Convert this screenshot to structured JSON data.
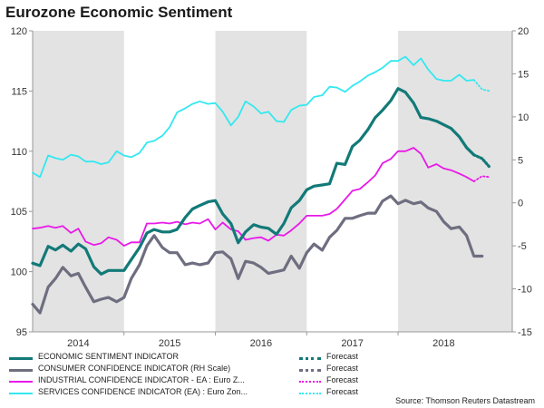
{
  "title": "Eurozone Economic Sentiment",
  "source": "Source: Thomson Reuters Datastream",
  "chart_data": {
    "type": "line",
    "x_range": [
      2013.5,
      2018.75
    ],
    "y_left": {
      "range": [
        95,
        120
      ],
      "ticks": [
        95,
        100,
        105,
        110,
        115,
        120
      ]
    },
    "y_right": {
      "range": [
        -15,
        20
      ],
      "ticks": [
        -15,
        -10,
        -5,
        0,
        5,
        10,
        15,
        20
      ]
    },
    "x_tick_labels": [
      {
        "label": "2014",
        "x": 2014.0
      },
      {
        "label": "2015",
        "x": 2015.0
      },
      {
        "label": "2016",
        "x": 2016.0
      },
      {
        "label": "2017",
        "x": 2017.0
      },
      {
        "label": "2018",
        "x": 2018.0
      }
    ],
    "shaded_years": [
      [
        2013.5,
        2014.5
      ],
      [
        2015.5,
        2016.5
      ],
      [
        2017.5,
        2018.75
      ]
    ],
    "forecast_label": "Forecast",
    "series": [
      {
        "name": "ECONOMIC SENTIMENT INDICATOR",
        "axis": "left",
        "color": "#127a78",
        "width": 3.2,
        "x": [
          2013.5,
          2013.58,
          2013.67,
          2013.75,
          2013.83,
          2013.92,
          2014.0,
          2014.08,
          2014.17,
          2014.25,
          2014.33,
          2014.42,
          2014.5,
          2014.58,
          2014.67,
          2014.75,
          2014.83,
          2014.92,
          2015.0,
          2015.08,
          2015.17,
          2015.25,
          2015.33,
          2015.42,
          2015.5,
          2015.58,
          2015.67,
          2015.75,
          2015.83,
          2015.92,
          2016.0,
          2016.08,
          2016.17,
          2016.25,
          2016.33,
          2016.42,
          2016.5,
          2016.58,
          2016.67,
          2016.75,
          2016.83,
          2016.92,
          2017.0,
          2017.08,
          2017.17,
          2017.25,
          2017.33,
          2017.42,
          2017.5,
          2017.58,
          2017.67,
          2017.75,
          2017.83,
          2017.92,
          2018.0,
          2018.08,
          2018.17,
          2018.25,
          2018.33
        ],
        "y": [
          100.7,
          100.5,
          102.1,
          101.8,
          102.2,
          101.7,
          102.3,
          101.9,
          100.4,
          99.8,
          100.1,
          100.1,
          100.1,
          101.0,
          102.0,
          103.2,
          103.5,
          103.3,
          103.3,
          103.5,
          104.5,
          105.2,
          105.5,
          105.8,
          105.9,
          104.8,
          104.0,
          102.4,
          103.3,
          103.9,
          103.7,
          103.6,
          103.1,
          104.0,
          105.3,
          105.9,
          106.8,
          107.1,
          107.2,
          107.3,
          109.0,
          108.9,
          110.4,
          110.9,
          111.8,
          112.8,
          113.4,
          114.2,
          115.2,
          114.9,
          114.0,
          112.8,
          112.7,
          112.5,
          112.2,
          111.9,
          111.2,
          110.3,
          109.7
        ],
        "forecast_x": [
          2018.33,
          2018.42,
          2018.5
        ],
        "forecast_y": [
          109.7,
          109.4,
          108.7
        ]
      },
      {
        "name": "CONSUMER CONFIDENCE INDICATOR (RH Scale)",
        "axis": "right",
        "color": "#6e6e80",
        "width": 3.2,
        "x": [
          2013.5,
          2013.58,
          2013.67,
          2013.75,
          2013.83,
          2013.92,
          2014.0,
          2014.08,
          2014.17,
          2014.25,
          2014.33,
          2014.42,
          2014.5,
          2014.58,
          2014.67,
          2014.75,
          2014.83,
          2014.92,
          2015.0,
          2015.08,
          2015.17,
          2015.25,
          2015.33,
          2015.42,
          2015.5,
          2015.58,
          2015.67,
          2015.75,
          2015.83,
          2015.92,
          2016.0,
          2016.08,
          2016.17,
          2016.25,
          2016.33,
          2016.42,
          2016.5,
          2016.58,
          2016.67,
          2016.75,
          2016.83,
          2016.92,
          2017.0,
          2017.08,
          2017.17,
          2017.25,
          2017.33,
          2017.42,
          2017.5,
          2017.58,
          2017.67,
          2017.75,
          2017.83,
          2017.92,
          2018.0,
          2018.08,
          2018.17,
          2018.25,
          2018.33,
          2018.42
        ],
        "y": [
          -11.8,
          -12.8,
          -9.8,
          -8.8,
          -7.5,
          -8.5,
          -8.2,
          -9.8,
          -11.5,
          -11.2,
          -11.0,
          -11.5,
          -11.0,
          -8.8,
          -7.2,
          -5.0,
          -3.8,
          -5.2,
          -5.8,
          -5.8,
          -7.2,
          -7.0,
          -7.2,
          -7.0,
          -5.8,
          -5.7,
          -6.5,
          -8.8,
          -6.8,
          -7.0,
          -7.5,
          -8.2,
          -8.0,
          -7.8,
          -6.2,
          -7.6,
          -5.8,
          -4.8,
          -5.5,
          -4.0,
          -3.2,
          -1.8,
          -1.8,
          -1.5,
          -1.2,
          -1.2,
          0.2,
          0.8,
          -0.1,
          0.3,
          -0.1,
          0.1,
          -0.6,
          -1.0,
          -2.2,
          -3.0,
          -2.8,
          -3.8,
          -6.2,
          -6.2
        ],
        "forecast_x": [],
        "forecast_y": []
      },
      {
        "name": "INDUSTRIAL CONFIDENCE INDICATOR - EA : Euro Z...",
        "axis": "right",
        "color": "#e81ae8",
        "width": 1.8,
        "x": [
          2013.5,
          2013.58,
          2013.67,
          2013.75,
          2013.83,
          2013.92,
          2014.0,
          2014.08,
          2014.17,
          2014.25,
          2014.33,
          2014.42,
          2014.5,
          2014.58,
          2014.67,
          2014.75,
          2014.83,
          2014.92,
          2015.0,
          2015.08,
          2015.17,
          2015.25,
          2015.33,
          2015.42,
          2015.5,
          2015.58,
          2015.67,
          2015.75,
          2015.83,
          2015.92,
          2016.0,
          2016.08,
          2016.17,
          2016.25,
          2016.33,
          2016.42,
          2016.5,
          2016.58,
          2016.67,
          2016.75,
          2016.83,
          2016.92,
          2017.0,
          2017.08,
          2017.17,
          2017.25,
          2017.33,
          2017.42,
          2017.5,
          2017.58,
          2017.67,
          2017.75,
          2017.83,
          2017.92,
          2018.0,
          2018.08,
          2018.17,
          2018.25,
          2018.33
        ],
        "y": [
          -3.0,
          -2.9,
          -2.7,
          -2.9,
          -2.7,
          -3.5,
          -3.0,
          -4.5,
          -4.9,
          -4.7,
          -4.0,
          -4.3,
          -5.0,
          -4.6,
          -4.6,
          -2.4,
          -2.4,
          -2.3,
          -2.4,
          -2.2,
          -2.5,
          -2.3,
          -2.4,
          -1.9,
          -3.1,
          -2.3,
          -3.1,
          -3.3,
          -4.3,
          -4.1,
          -4.0,
          -4.4,
          -3.7,
          -3.8,
          -3.2,
          -2.4,
          -1.5,
          -1.5,
          -1.5,
          -1.3,
          -0.7,
          0.4,
          1.4,
          1.6,
          2.4,
          3.2,
          4.6,
          5.1,
          6.0,
          6.0,
          6.4,
          5.7,
          4.1,
          4.5,
          4.0,
          3.8,
          3.4,
          3.0,
          2.5
        ],
        "forecast_x": [
          2018.33,
          2018.42,
          2018.5
        ],
        "forecast_y": [
          2.5,
          3.1,
          3.0
        ]
      },
      {
        "name": "SERVICES CONFIDENCE INDICATOR (EA) : Euro Zon...",
        "axis": "right",
        "color": "#33e8f0",
        "width": 1.8,
        "x": [
          2013.5,
          2013.58,
          2013.67,
          2013.75,
          2013.83,
          2013.92,
          2014.0,
          2014.08,
          2014.17,
          2014.25,
          2014.33,
          2014.42,
          2014.5,
          2014.58,
          2014.67,
          2014.75,
          2014.83,
          2014.92,
          2015.0,
          2015.08,
          2015.17,
          2015.25,
          2015.33,
          2015.42,
          2015.5,
          2015.58,
          2015.67,
          2015.75,
          2015.83,
          2015.92,
          2016.0,
          2016.08,
          2016.17,
          2016.25,
          2016.33,
          2016.42,
          2016.5,
          2016.58,
          2016.67,
          2016.75,
          2016.83,
          2016.92,
          2017.0,
          2017.08,
          2017.17,
          2017.25,
          2017.33,
          2017.42,
          2017.5,
          2017.58,
          2017.67,
          2017.75,
          2017.83,
          2017.92,
          2018.0,
          2018.08,
          2018.17,
          2018.25,
          2018.33
        ],
        "y": [
          3.5,
          3.0,
          5.5,
          5.2,
          5.0,
          5.6,
          5.4,
          4.8,
          4.8,
          4.5,
          4.7,
          6.0,
          5.5,
          5.3,
          5.8,
          7.0,
          7.2,
          7.8,
          8.8,
          10.5,
          11.0,
          11.5,
          11.8,
          11.5,
          11.6,
          10.6,
          9.0,
          10.0,
          11.8,
          11.2,
          10.4,
          10.6,
          9.5,
          9.4,
          10.8,
          11.3,
          11.4,
          12.3,
          12.5,
          13.5,
          13.4,
          12.9,
          13.6,
          14.1,
          14.8,
          15.2,
          15.7,
          16.5,
          16.5,
          17.0,
          16.0,
          16.8,
          15.5,
          14.4,
          14.2,
          14.2,
          14.9,
          14.2,
          14.3
        ],
        "forecast_x": [
          2018.33,
          2018.42,
          2018.5
        ],
        "forecast_y": [
          14.3,
          13.2,
          13.0
        ]
      }
    ]
  }
}
